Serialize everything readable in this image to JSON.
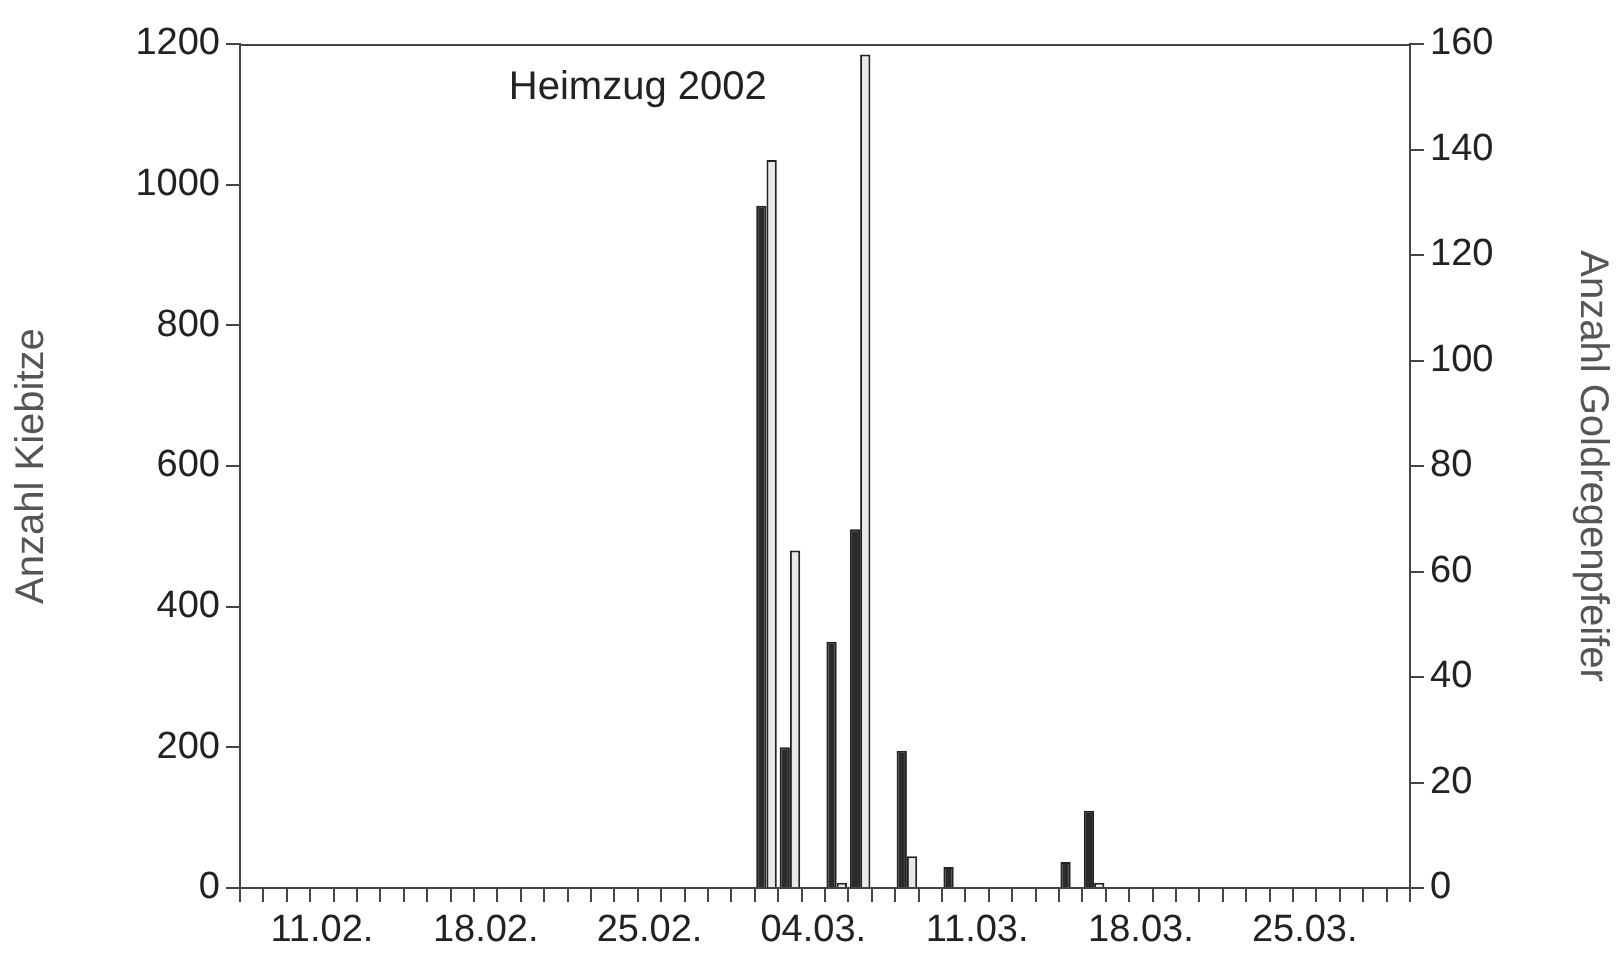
{
  "chart_data": {
    "type": "bar",
    "ylabel": "Anzahl Kiebitze",
    "y2label": "Anzahl Goldregenpfeifer",
    "annotations": [
      "Heimzug 2002"
    ],
    "categories": [
      null,
      null,
      null,
      "11.02.",
      null,
      null,
      null,
      null,
      null,
      null,
      "18.02.",
      null,
      null,
      null,
      null,
      null,
      null,
      "25.02.",
      null,
      null,
      null,
      null,
      null,
      null,
      "04.03.",
      null,
      null,
      null,
      null,
      null,
      null,
      "11.03.",
      null,
      null,
      null,
      null,
      null,
      null,
      "18.03.",
      null,
      null,
      null,
      null,
      null,
      null,
      "25.03.",
      null,
      null,
      null,
      null
    ],
    "series": [
      {
        "color": "#2b2b2b",
        "values": [
          0,
          0,
          0,
          0,
          0,
          0,
          0,
          0,
          0,
          0,
          0,
          0,
          0,
          0,
          0,
          0,
          0,
          0,
          0,
          0,
          0,
          0,
          970,
          200,
          0,
          350,
          510,
          0,
          195,
          0,
          30,
          0,
          0,
          0,
          0,
          37,
          110,
          0,
          0,
          0,
          0,
          0,
          0,
          0,
          0,
          0,
          0,
          0,
          0,
          0
        ]
      },
      {
        "color": "#e8e8e8",
        "axis": "y2",
        "values": [
          0,
          0,
          0,
          0,
          0,
          0,
          0,
          0,
          0,
          0,
          0,
          0,
          0,
          0,
          0,
          0,
          0,
          0,
          0,
          0,
          0,
          0,
          138,
          64,
          0,
          1,
          158,
          0,
          6,
          0,
          0,
          0,
          0,
          0,
          0,
          0,
          1,
          0,
          0,
          0,
          0,
          0,
          0,
          0,
          0,
          0,
          0,
          0,
          0,
          0
        ]
      }
    ],
    "ylim": [
      0,
      1200
    ],
    "yticks": [
      0,
      200,
      400,
      600,
      800,
      1000,
      1200
    ],
    "y2lim": [
      0,
      160
    ],
    "y2ticks": [
      0,
      20,
      40,
      60,
      80,
      100,
      120,
      140,
      160
    ],
    "grid": false,
    "legend": false
  }
}
